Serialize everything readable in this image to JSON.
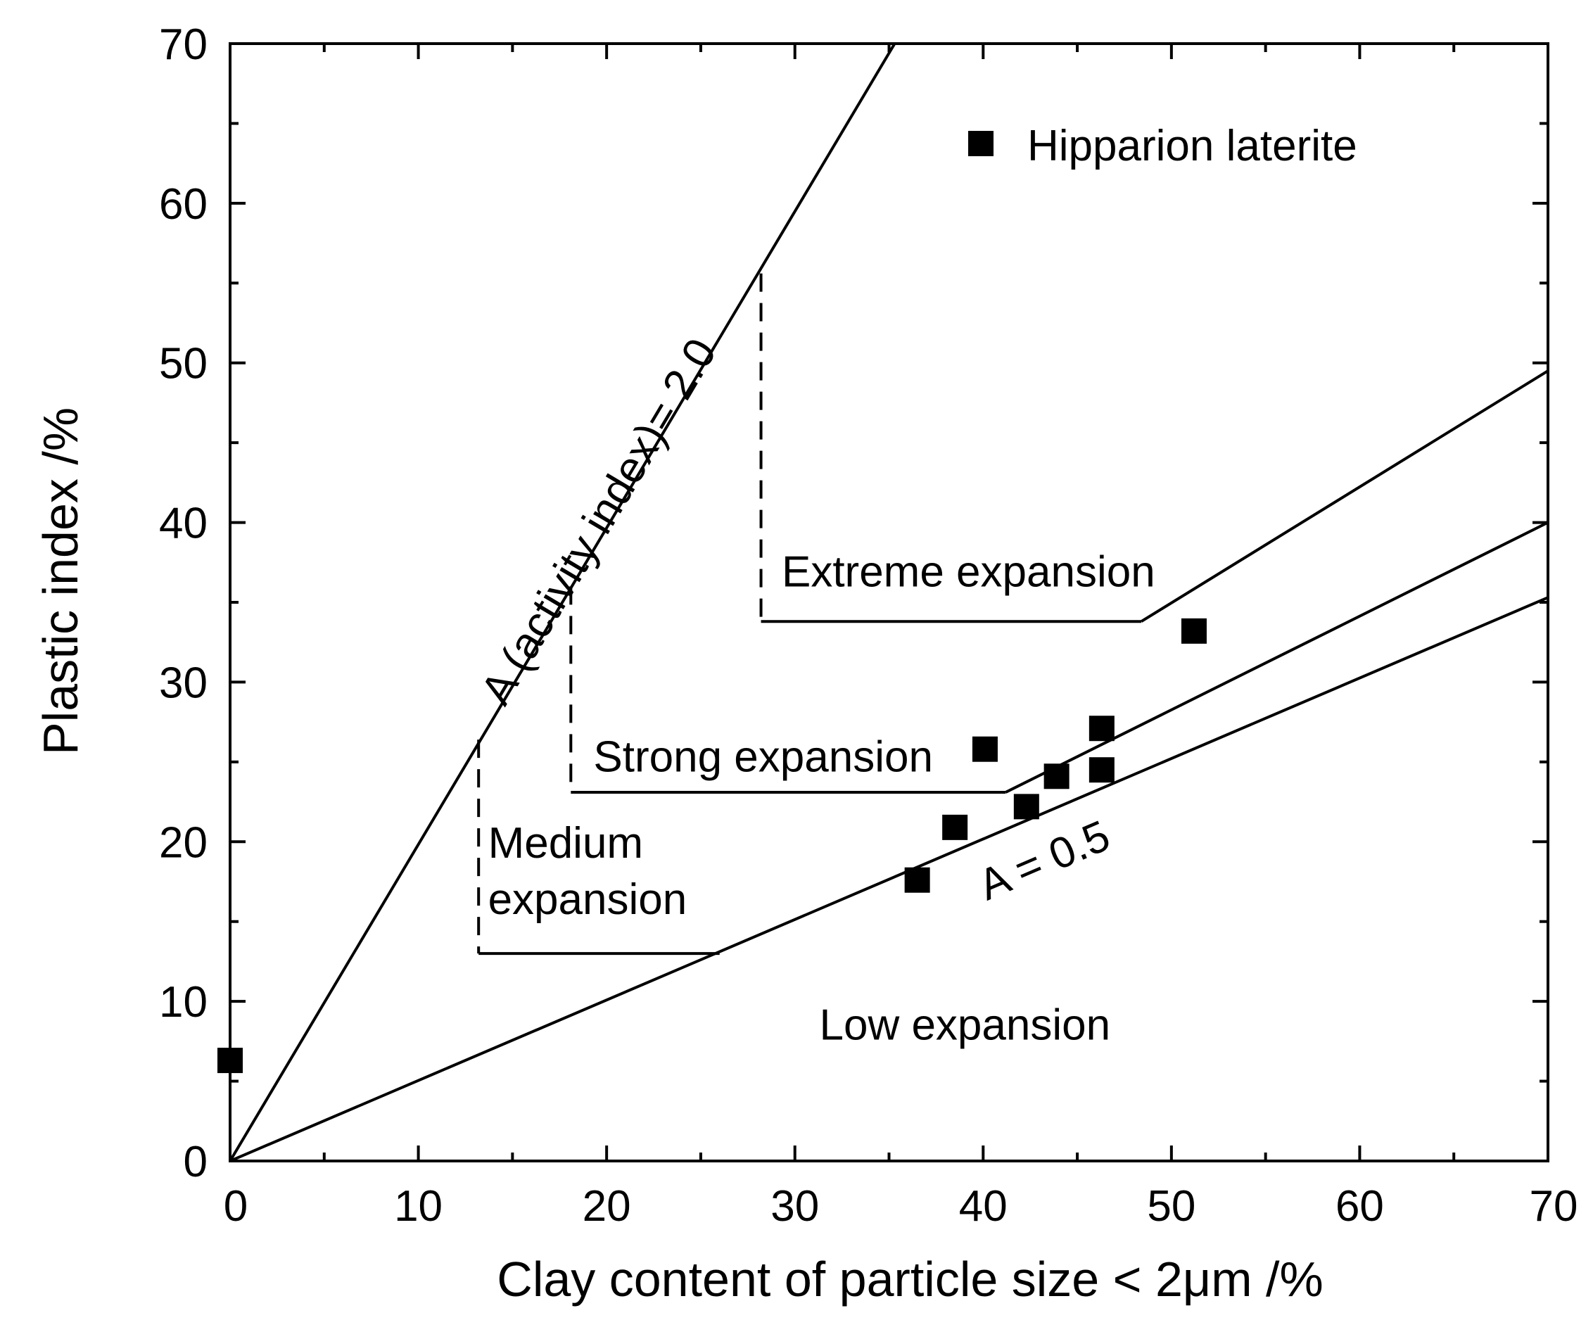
{
  "chart_data": {
    "type": "scatter",
    "xlabel": "Clay content of particle size < 2μm /%",
    "ylabel": "Plastic index /%",
    "xlim": [
      0,
      70
    ],
    "ylim": [
      0,
      70
    ],
    "xticks": [
      0,
      10,
      20,
      30,
      40,
      50,
      60,
      70
    ],
    "yticks": [
      0,
      10,
      20,
      30,
      40,
      50,
      60,
      70
    ],
    "xtick_labels": [
      "0",
      "10",
      "20",
      "30",
      "40",
      "50",
      "60",
      "70"
    ],
    "ytick_labels": [
      "0",
      "10",
      "20",
      "30",
      "40",
      "50",
      "60",
      "70"
    ],
    "grid": false,
    "legend_position": "top-right",
    "series": [
      {
        "name": "Hipparion laterite",
        "marker": "square",
        "color": "#000000",
        "points": [
          {
            "x": 0,
            "y": 6.3
          },
          {
            "x": 36.5,
            "y": 17.6
          },
          {
            "x": 38.5,
            "y": 20.9
          },
          {
            "x": 40.1,
            "y": 25.8
          },
          {
            "x": 42.3,
            "y": 22.2
          },
          {
            "x": 43.9,
            "y": 24.1
          },
          {
            "x": 46.3,
            "y": 27.1
          },
          {
            "x": 46.3,
            "y": 24.5
          },
          {
            "x": 51.2,
            "y": 33.2
          }
        ]
      }
    ],
    "reference_lines": [
      {
        "name": "activity-2.0-line",
        "label": "A (activity index)= 2.0",
        "points": [
          [
            0,
            0
          ],
          [
            35.3,
            70
          ]
        ]
      },
      {
        "name": "activity-0.5-line",
        "label": "A = 0.5",
        "points": [
          [
            0,
            0
          ],
          [
            70,
            35.3
          ]
        ]
      },
      {
        "name": "strong-boundary-line",
        "points": [
          [
            41.2,
            23.1
          ],
          [
            70,
            40.0
          ]
        ]
      },
      {
        "name": "extreme-boundary-line",
        "points": [
          [
            48.4,
            33.8
          ],
          [
            70,
            49.5
          ]
        ]
      }
    ],
    "region_boundaries": [
      {
        "name": "medium-boundary",
        "style": "dashed-vertical-solid-horizontal",
        "points": [
          [
            13.2,
            26.4
          ],
          [
            13.2,
            13.0
          ],
          [
            26.0,
            13.0
          ]
        ]
      },
      {
        "name": "strong-boundary",
        "style": "dashed-vertical-solid-horizontal",
        "points": [
          [
            18.1,
            36.0
          ],
          [
            18.1,
            23.1
          ],
          [
            41.2,
            23.1
          ]
        ]
      },
      {
        "name": "extreme-boundary",
        "style": "dashed-vertical-solid-horizontal",
        "points": [
          [
            28.2,
            55.6
          ],
          [
            28.2,
            33.8
          ],
          [
            48.4,
            33.8
          ]
        ]
      }
    ],
    "annotations": [
      {
        "name": "region-extreme-expansion",
        "lines": [
          "Extreme expansion"
        ],
        "x": 29.3,
        "y": 36.0
      },
      {
        "name": "region-strong-expansion",
        "lines": [
          "Strong expansion"
        ],
        "x": 19.3,
        "y": 24.4
      },
      {
        "name": "region-medium-expansion",
        "lines": [
          "Medium",
          "expansion"
        ],
        "x": 13.7,
        "y": 19.0
      },
      {
        "name": "region-low-expansion",
        "lines": [
          "Low expansion"
        ],
        "x": 31.3,
        "y": 7.6
      }
    ]
  }
}
